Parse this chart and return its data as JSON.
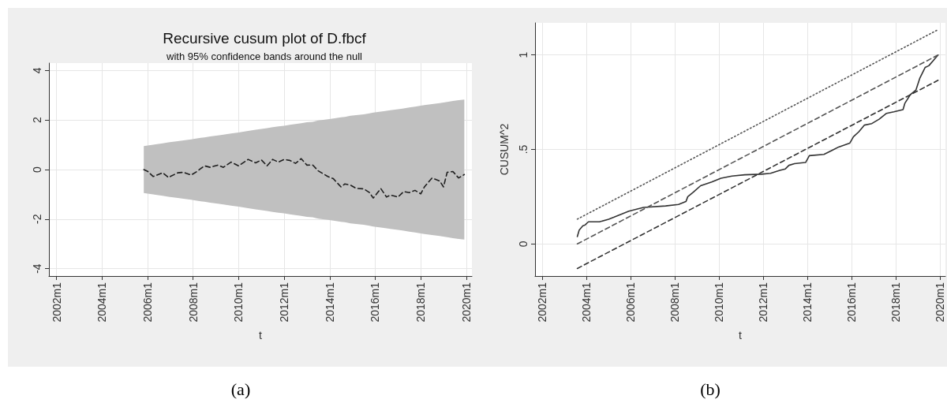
{
  "chart_data": [
    {
      "type": "line",
      "title": "Recursive cusum plot of D.fbcf",
      "subtitle": "with 95% confidence bands around the null",
      "xlabel": "t",
      "xlim": [
        "2001-09",
        "2020-04"
      ],
      "xticks": [
        {
          "value": "2002-01",
          "label": "2002m1"
        },
        {
          "value": "2004-01",
          "label": "2004m1"
        },
        {
          "value": "2006-01",
          "label": "2006m1"
        },
        {
          "value": "2008-01",
          "label": "2008m1"
        },
        {
          "value": "2010-01",
          "label": "2010m1"
        },
        {
          "value": "2012-01",
          "label": "2012m1"
        },
        {
          "value": "2014-01",
          "label": "2014m1"
        },
        {
          "value": "2016-01",
          "label": "2016m1"
        },
        {
          "value": "2018-01",
          "label": "2018m1"
        },
        {
          "value": "2020-01",
          "label": "2020m1"
        }
      ],
      "ylim": [
        -4.3,
        4.3
      ],
      "yticks": [
        -4,
        -2,
        0,
        2,
        4
      ],
      "grid": true,
      "marker": "none",
      "annotations": [
        "(a)"
      ],
      "series": [
        {
          "color": "#1e1e1e",
          "line_style": "dashed",
          "x": [
            "2005-11",
            "2006-01",
            "2006-04",
            "2006-06",
            "2006-09",
            "2006-12",
            "2007-05",
            "2007-08",
            "2007-12",
            "2008-03",
            "2008-07",
            "2008-10",
            "2009-02",
            "2009-05",
            "2009-09",
            "2010-01",
            "2010-06",
            "2010-10",
            "2011-01",
            "2011-04",
            "2011-07",
            "2011-10",
            "2012-01",
            "2012-04",
            "2012-07",
            "2012-10",
            "2013-01",
            "2013-04",
            "2013-07",
            "2013-12",
            "2014-03",
            "2014-07",
            "2014-09",
            "2014-12",
            "2015-03",
            "2015-07",
            "2015-10",
            "2015-12",
            "2016-04",
            "2016-07",
            "2016-09",
            "2017-01",
            "2017-04",
            "2017-07",
            "2017-10",
            "2018-01",
            "2018-03",
            "2018-07",
            "2018-11",
            "2019-01",
            "2019-03",
            "2019-06",
            "2019-09",
            "2019-12"
          ],
          "values": [
            0,
            -0.07,
            -0.28,
            -0.22,
            -0.13,
            -0.32,
            -0.13,
            -0.11,
            -0.22,
            -0.08,
            0.15,
            0.09,
            0.18,
            0.09,
            0.3,
            0.15,
            0.41,
            0.27,
            0.39,
            0.15,
            0.41,
            0.3,
            0.41,
            0.37,
            0.25,
            0.44,
            0.18,
            0.19,
            -0.05,
            -0.28,
            -0.37,
            -0.7,
            -0.58,
            -0.63,
            -0.76,
            -0.78,
            -0.93,
            -1.15,
            -0.77,
            -1.11,
            -1.03,
            -1.11,
            -0.89,
            -0.93,
            -0.84,
            -0.98,
            -0.7,
            -0.34,
            -0.46,
            -0.7,
            -0.11,
            -0.08,
            -0.34,
            -0.2
          ],
          "upper": [
            0.95,
            0.97,
            1.0,
            1.03,
            1.06,
            1.1,
            1.15,
            1.18,
            1.22,
            1.26,
            1.3,
            1.34,
            1.38,
            1.41,
            1.46,
            1.5,
            1.56,
            1.61,
            1.64,
            1.67,
            1.71,
            1.74,
            1.77,
            1.81,
            1.84,
            1.87,
            1.91,
            1.93,
            1.98,
            2.03,
            2.06,
            2.11,
            2.13,
            2.17,
            2.2,
            2.23,
            2.27,
            2.3,
            2.34,
            2.37,
            2.4,
            2.44,
            2.47,
            2.51,
            2.54,
            2.58,
            2.6,
            2.64,
            2.68,
            2.71,
            2.73,
            2.77,
            2.8,
            2.83
          ],
          "lower": [
            -0.95,
            -0.97,
            -1.0,
            -1.03,
            -1.06,
            -1.1,
            -1.15,
            -1.18,
            -1.22,
            -1.26,
            -1.3,
            -1.34,
            -1.38,
            -1.41,
            -1.46,
            -1.5,
            -1.56,
            -1.61,
            -1.64,
            -1.67,
            -1.71,
            -1.74,
            -1.77,
            -1.81,
            -1.84,
            -1.87,
            -1.91,
            -1.93,
            -1.98,
            -2.03,
            -2.06,
            -2.11,
            -2.13,
            -2.17,
            -2.2,
            -2.23,
            -2.27,
            -2.3,
            -2.34,
            -2.37,
            -2.4,
            -2.44,
            -2.47,
            -2.51,
            -2.54,
            -2.58,
            -2.6,
            -2.64,
            -2.68,
            -2.71,
            -2.73,
            -2.77,
            -2.8,
            -2.83
          ]
        }
      ]
    },
    {
      "type": "line",
      "xlabel": "t",
      "ylabel": "CUSUM^2",
      "xlim": [
        "2001-09",
        "2020-04"
      ],
      "xticks": [
        {
          "value": "2002-01",
          "label": "2002m1"
        },
        {
          "value": "2004-01",
          "label": "2004m1"
        },
        {
          "value": "2006-01",
          "label": "2006m1"
        },
        {
          "value": "2008-01",
          "label": "2008m1"
        },
        {
          "value": "2010-01",
          "label": "2010m1"
        },
        {
          "value": "2012-01",
          "label": "2012m1"
        },
        {
          "value": "2014-01",
          "label": "2014m1"
        },
        {
          "value": "2016-01",
          "label": "2016m1"
        },
        {
          "value": "2018-01",
          "label": "2018m1"
        },
        {
          "value": "2020-01",
          "label": "2020m1"
        }
      ],
      "ylim": [
        -0.17,
        1.17
      ],
      "yticks": [
        0,
        {
          "value": 0.5,
          "label": ".5"
        },
        1
      ],
      "grid": true,
      "marker": "none",
      "annotations": [
        "(b)"
      ],
      "series": [
        {
          "color": "#333333",
          "line_style": "solid",
          "x": [
            "2003-08",
            "2003-09",
            "2003-11",
            "2003-12",
            "2004-02",
            "2004-08",
            "2005-01",
            "2005-04",
            "2005-08",
            "2005-12",
            "2006-08",
            "2007-08",
            "2008-03",
            "2008-07",
            "2008-08",
            "2008-11",
            "2009-03",
            "2009-09",
            "2010-02",
            "2010-08",
            "2011-03",
            "2011-12",
            "2012-05",
            "2012-10",
            "2013-01",
            "2013-03",
            "2013-06",
            "2013-12",
            "2014-02",
            "2014-10",
            "2015-03",
            "2015-06",
            "2015-12",
            "2016-02",
            "2016-05",
            "2016-08",
            "2016-12",
            "2017-04",
            "2017-08",
            "2017-12",
            "2018-05",
            "2018-06",
            "2018-09",
            "2018-12",
            "2019-02",
            "2019-05",
            "2019-07",
            "2019-10",
            "2019-12"
          ],
          "values": [
            0.039,
            0.073,
            0.096,
            0.099,
            0.117,
            0.117,
            0.131,
            0.142,
            0.158,
            0.173,
            0.193,
            0.201,
            0.209,
            0.224,
            0.25,
            0.274,
            0.308,
            0.328,
            0.348,
            0.359,
            0.366,
            0.369,
            0.374,
            0.389,
            0.397,
            0.416,
            0.425,
            0.431,
            0.467,
            0.474,
            0.498,
            0.513,
            0.533,
            0.567,
            0.594,
            0.629,
            0.637,
            0.66,
            0.691,
            0.699,
            0.711,
            0.745,
            0.791,
            0.815,
            0.876,
            0.934,
            0.943,
            0.977,
            1.0
          ]
        },
        {
          "color": "#555555",
          "line_style": "dotted",
          "x": [
            "2003-08",
            "2019-12"
          ],
          "values": [
            0.131,
            1.134
          ]
        },
        {
          "color": "#555555",
          "line_style": "dashed",
          "x": [
            "2003-08",
            "2019-12"
          ],
          "values": [
            0,
            1
          ]
        },
        {
          "color": "#333333",
          "line_style": "dashed",
          "x": [
            "2003-08",
            "2019-12"
          ],
          "values": [
            -0.13,
            0.866
          ]
        }
      ]
    }
  ]
}
